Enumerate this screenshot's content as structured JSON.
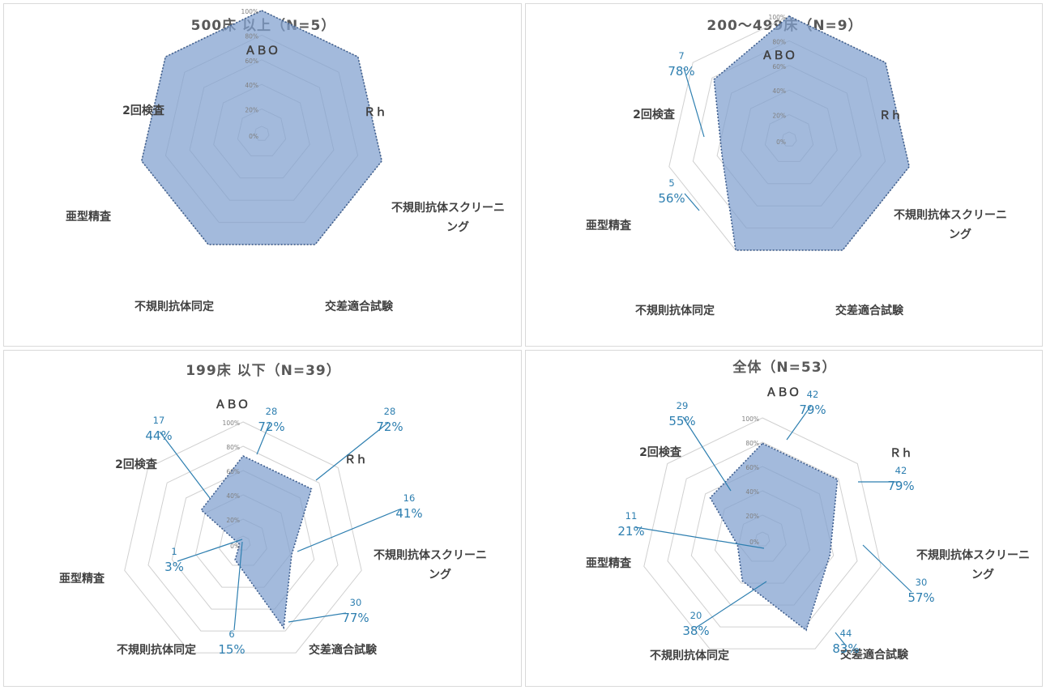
{
  "chart_data": [
    {
      "type": "radar",
      "title": "500床 以上（N=5）",
      "categories": [
        "ＡＢＯ",
        "Ｒｈ",
        "不規則抗体スクリーニング",
        "交差適合試験",
        "不規則抗体同定",
        "亜型精査",
        "2回検査"
      ],
      "category_label_lines": [
        [
          "ＡＢＯ"
        ],
        [
          "Ｒｈ"
        ],
        [
          "不規則抗体スクリーニ",
          "ング"
        ],
        [
          "交差適合試験"
        ],
        [
          "不規則抗体同定"
        ],
        [
          "亜型精査"
        ],
        [
          "2回検査"
        ]
      ],
      "ticks": [
        "0%",
        "20%",
        "40%",
        "60%",
        "80%",
        "100%"
      ],
      "values": [
        100,
        100,
        100,
        100,
        100,
        100,
        100
      ],
      "data_labels": [
        null,
        null,
        null,
        null,
        null,
        null,
        null
      ],
      "ylim": [
        0,
        100
      ]
    },
    {
      "type": "radar",
      "title": "200～499床（N=9）",
      "categories": [
        "ＡＢＯ",
        "Ｒｈ",
        "不規則抗体スクリーニング",
        "交差適合試験",
        "不規則抗体同定",
        "亜型精査",
        "2回検査"
      ],
      "category_label_lines": [
        [
          "ＡＢＯ"
        ],
        [
          "Ｒｈ"
        ],
        [
          "不規則抗体スクリーニ",
          "ング"
        ],
        [
          "交差適合試験"
        ],
        [
          "不規則抗体同定"
        ],
        [
          "亜型精査"
        ],
        [
          "2回検査"
        ]
      ],
      "ticks": [
        "0%",
        "20%",
        "40%",
        "60%",
        "80%",
        "100%"
      ],
      "values": [
        100,
        100,
        100,
        100,
        100,
        56,
        78
      ],
      "data_labels": [
        null,
        null,
        null,
        null,
        null,
        {
          "count": "5",
          "pct": "56%"
        },
        {
          "count": "7",
          "pct": "78%"
        }
      ],
      "ylim": [
        0,
        100
      ]
    },
    {
      "type": "radar",
      "title": "199床 以下（N=39）",
      "categories": [
        "ＡＢＯ",
        "Ｒｈ",
        "不規則抗体スクリーニング",
        "交差適合試験",
        "不規則抗体同定",
        "亜型精査",
        "2回検査"
      ],
      "category_label_lines": [
        [
          "ＡＢＯ"
        ],
        [
          "Ｒｈ"
        ],
        [
          "不規則抗体スクリーニ",
          "ング"
        ],
        [
          "交差適合試験"
        ],
        [
          "不規則抗体同定"
        ],
        [
          "亜型精査"
        ],
        [
          "2回検査"
        ]
      ],
      "ticks": [
        "0%",
        "20%",
        "40%",
        "60%",
        "80%",
        "100%"
      ],
      "values": [
        72,
        72,
        41,
        77,
        15,
        3,
        44
      ],
      "data_labels": [
        {
          "count": "28",
          "pct": "72%"
        },
        {
          "count": "28",
          "pct": "72%"
        },
        {
          "count": "16",
          "pct": "41%"
        },
        {
          "count": "30",
          "pct": "77%"
        },
        {
          "count": "6",
          "pct": "15%"
        },
        {
          "count": "1",
          "pct": "3%"
        },
        {
          "count": "17",
          "pct": "44%"
        }
      ],
      "ylim": [
        0,
        100
      ]
    },
    {
      "type": "radar",
      "title": "全体（N=53）",
      "categories": [
        "ＡＢＯ",
        "Ｒｈ",
        "不規則抗体スクリーニング",
        "交差適合試験",
        "不規則抗体同定",
        "亜型精査",
        "2回検査"
      ],
      "category_label_lines": [
        [
          "ＡＢＯ"
        ],
        [
          "Ｒｈ"
        ],
        [
          "不規則抗体スクリーニ",
          "ング"
        ],
        [
          "交差適合試験"
        ],
        [
          "不規則抗体同定"
        ],
        [
          "亜型精査"
        ],
        [
          "2回検査"
        ]
      ],
      "ticks": [
        "0%",
        "20%",
        "40%",
        "60%",
        "80%",
        "100%"
      ],
      "values": [
        79,
        79,
        57,
        83,
        38,
        21,
        55
      ],
      "data_labels": [
        {
          "count": "42",
          "pct": "79%"
        },
        {
          "count": "42",
          "pct": "79%"
        },
        {
          "count": "30",
          "pct": "57%"
        },
        {
          "count": "44",
          "pct": "83%"
        },
        {
          "count": "20",
          "pct": "38%"
        },
        {
          "count": "11",
          "pct": "21%"
        },
        {
          "count": "29",
          "pct": "55%"
        }
      ],
      "ylim": [
        0,
        100
      ]
    }
  ],
  "colors": {
    "fill": "#7f9fcf",
    "outline": "#3f5f8f",
    "grid": "#d0d0d0",
    "label": "#404040",
    "data_label": "#2e7fb0"
  }
}
